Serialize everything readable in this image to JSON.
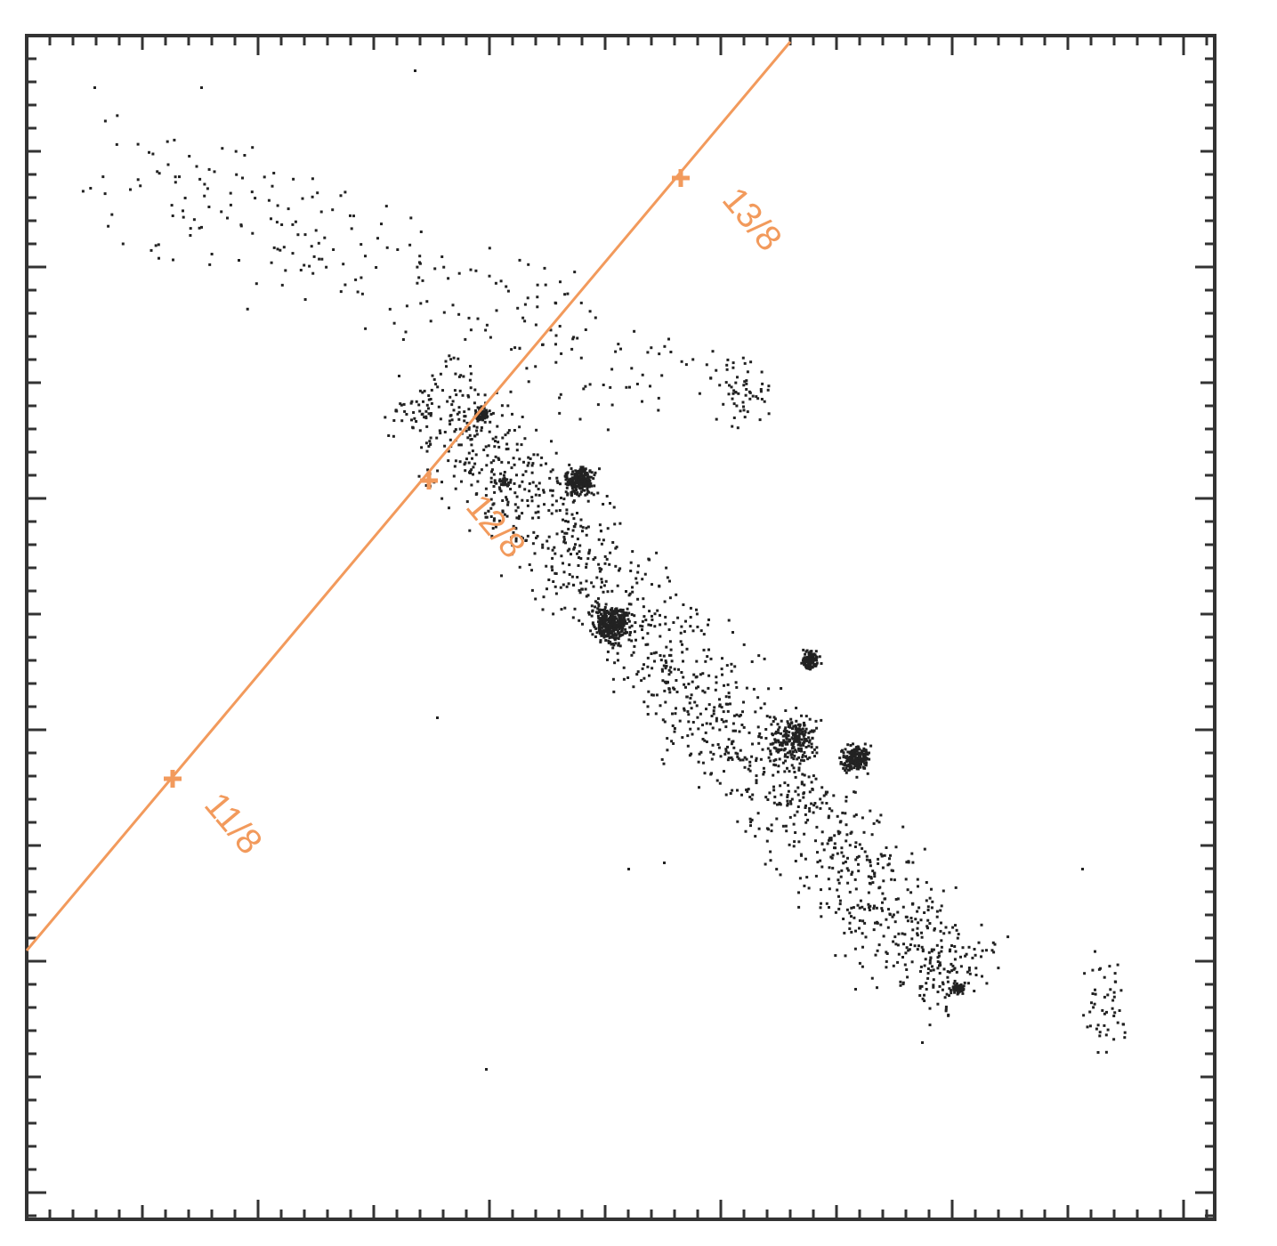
{
  "annotations": [
    "11/8",
    "12/8",
    "13/8"
  ]
}
